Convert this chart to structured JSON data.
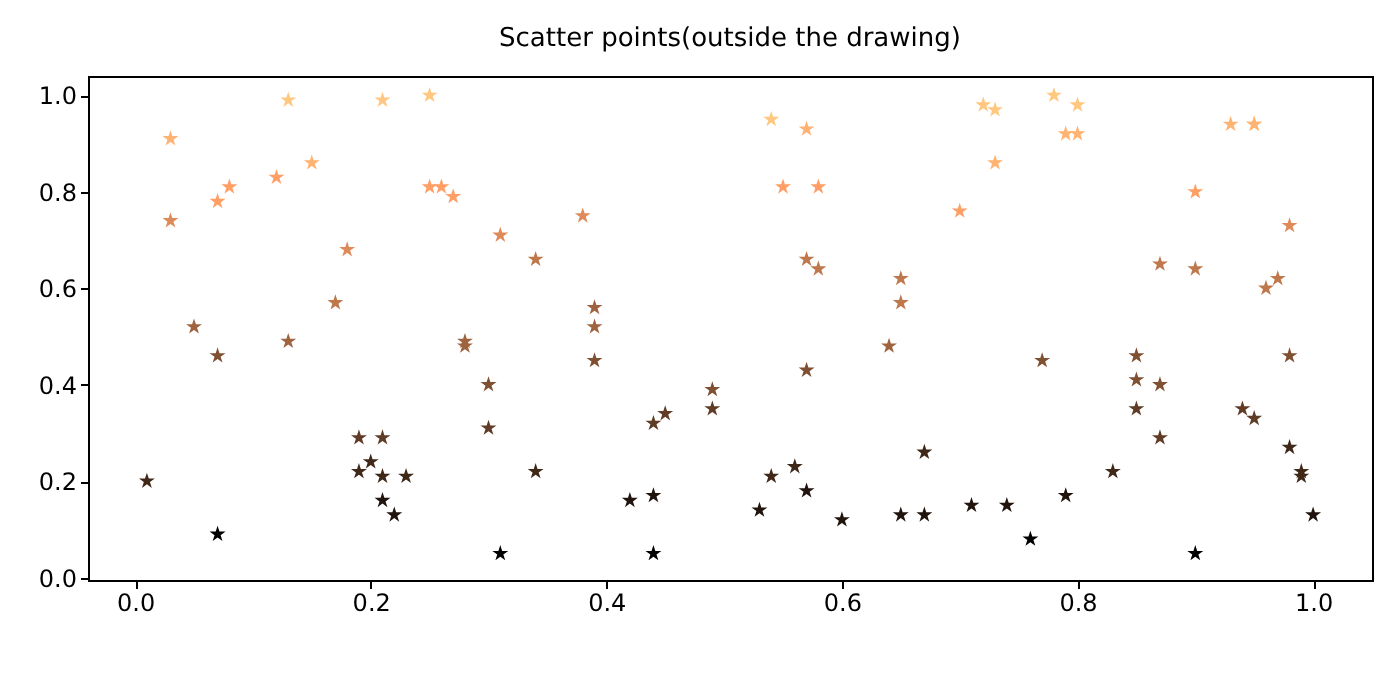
{
  "chart_data": {
    "type": "scatter",
    "title": "Scatter points(outside the drawing)",
    "marker": "star",
    "grid": false,
    "xlim": [
      -0.04,
      1.05
    ],
    "ylim": [
      -0.005,
      1.04
    ],
    "xticks": [
      {
        "value": 0,
        "label": "0.0"
      },
      0.2,
      0.4,
      0.6,
      0.8,
      {
        "value": 1,
        "label": "1.0"
      }
    ],
    "yticks": [
      {
        "value": 0,
        "label": "0.0"
      },
      0.2,
      0.4,
      0.6,
      0.8,
      {
        "value": 1,
        "label": "1.0"
      }
    ],
    "series": [
      {
        "x": [
          0.01,
          0.07,
          0.03,
          0.03,
          0.05,
          0.07,
          0.07,
          0.08,
          0.12,
          0.13,
          0.13,
          0.15,
          0.17,
          0.18,
          0.19,
          0.2,
          0.19,
          0.21,
          0.21,
          0.21,
          0.21,
          0.22,
          0.23,
          0.25,
          0.25,
          0.26,
          0.27,
          0.28,
          0.28,
          0.3,
          0.3,
          0.31,
          0.31,
          0.34,
          0.34,
          0.38,
          0.39,
          0.39,
          0.39,
          0.42,
          0.44,
          0.44,
          0.44,
          0.45,
          0.49,
          0.49,
          0.54,
          0.54,
          0.53,
          0.55,
          0.56,
          0.57,
          0.57,
          0.58,
          0.57,
          0.57,
          0.58,
          0.6,
          0.64,
          0.65,
          0.65,
          0.65,
          0.67,
          0.67,
          0.7,
          0.71,
          0.72,
          0.73,
          0.73,
          0.74,
          0.76,
          0.77,
          0.78,
          0.79,
          0.79,
          0.8,
          0.8,
          0.83,
          0.85,
          0.85,
          0.85,
          0.87,
          0.87,
          0.87,
          0.9,
          0.9,
          0.9,
          0.93,
          0.95,
          0.95,
          0.96,
          0.97,
          0.98,
          0.98,
          0.94,
          0.95,
          0.98,
          0.99,
          0.99,
          1.0
        ],
        "values": [
          0.2,
          0.09,
          0.91,
          0.74,
          0.52,
          0.46,
          0.78,
          0.81,
          0.83,
          0.99,
          0.49,
          0.86,
          0.57,
          0.68,
          0.29,
          0.24,
          0.22,
          0.99,
          0.29,
          0.21,
          0.16,
          0.13,
          0.21,
          1.0,
          0.81,
          0.81,
          0.79,
          0.49,
          0.48,
          0.4,
          0.31,
          0.71,
          0.05,
          0.66,
          0.22,
          0.75,
          0.52,
          0.56,
          0.45,
          0.16,
          0.32,
          0.17,
          0.05,
          0.34,
          0.39,
          0.35,
          0.95,
          0.21,
          0.14,
          0.81,
          0.23,
          0.93,
          0.66,
          0.64,
          0.43,
          0.18,
          0.81,
          0.12,
          0.48,
          0.62,
          0.57,
          0.13,
          0.13,
          0.26,
          0.76,
          0.15,
          0.98,
          0.97,
          0.86,
          0.15,
          0.08,
          0.45,
          1.0,
          0.17,
          0.92,
          0.92,
          0.98,
          0.22,
          0.46,
          0.41,
          0.35,
          0.65,
          0.4,
          0.29,
          0.8,
          0.64,
          0.05,
          0.94,
          0.94,
          0.94,
          0.6,
          0.62,
          0.73,
          0.46,
          0.35,
          0.33,
          0.27,
          0.22,
          0.21,
          0.13
        ],
        "colors": [
          "#402819",
          "#000000",
          "#ffb372",
          "#df8b59",
          "#9f643f",
          "#805033",
          "#ff9f65",
          "#ff9f65",
          "#ff9f65",
          "#ffc77f",
          "#9f643f",
          "#ffb372",
          "#bf784c",
          "#df8b59",
          "#603c26",
          "#402819",
          "#402819",
          "#ffc77f",
          "#603c26",
          "#402819",
          "#20140d",
          "#20140d",
          "#402819",
          "#ffc77f",
          "#ff9f65",
          "#ff9f65",
          "#ff9f65",
          "#9f643f",
          "#9f643f",
          "#805033",
          "#603c26",
          "#df8b59",
          "#000000",
          "#bf784c",
          "#402819",
          "#df8b59",
          "#9f643f",
          "#9f643f",
          "#805033",
          "#20140d",
          "#603c26",
          "#20140d",
          "#000000",
          "#603c26",
          "#805033",
          "#603c26",
          "#ffc77f",
          "#402819",
          "#20140d",
          "#ff9f65",
          "#402819",
          "#ffb372",
          "#bf784c",
          "#bf784c",
          "#805033",
          "#20140d",
          "#ff9f65",
          "#20140d",
          "#9f643f",
          "#bf784c",
          "#bf784c",
          "#20140d",
          "#20140d",
          "#402819",
          "#ff9f65",
          "#20140d",
          "#ffc77f",
          "#ffc77f",
          "#ffb372",
          "#20140d",
          "#000000",
          "#805033",
          "#ffc77f",
          "#20140d",
          "#ffb372",
          "#ffb372",
          "#ffc77f",
          "#402819",
          "#805033",
          "#805033",
          "#603c26",
          "#bf784c",
          "#805033",
          "#603c26",
          "#ff9f65",
          "#bf784c",
          "#000000",
          "#ffb372",
          "#ffb372",
          "#ffb372",
          "#bf784c",
          "#bf784c",
          "#df8b59",
          "#805033",
          "#603c26",
          "#603c26",
          "#402819",
          "#402819",
          "#402819",
          "#20140d"
        ]
      }
    ]
  }
}
